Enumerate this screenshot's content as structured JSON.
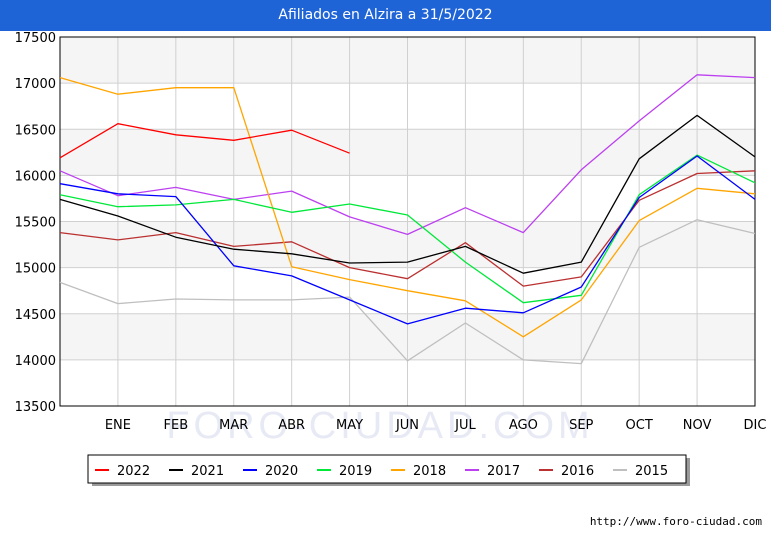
{
  "title": "Afiliados en Alzira a 31/5/2022",
  "source_url": "http://www.foro-ciudad.com",
  "watermark": "FORO-CIUDAD.COM",
  "colors": {
    "title_bg": "#1f64d7",
    "band": "#f5f5f5",
    "grid": "#d0d0d0"
  },
  "chart_data": {
    "type": "line",
    "title": "Afiliados en Alzira a 31/5/2022",
    "xlabel": "",
    "ylabel": "",
    "x_points": [
      "",
      "ENE",
      "FEB",
      "MAR",
      "ABR",
      "MAY",
      "JUN",
      "JUL",
      "AGO",
      "SEP",
      "OCT",
      "NOV",
      "DIC"
    ],
    "x_tick_labels": [
      "ENE",
      "FEB",
      "MAR",
      "ABR",
      "MAY",
      "JUN",
      "JUL",
      "AGO",
      "SEP",
      "OCT",
      "NOV",
      "DIC"
    ],
    "ylim": [
      13500,
      17500
    ],
    "y_ticks": [
      13500,
      14000,
      14500,
      15000,
      15500,
      16000,
      16500,
      17000,
      17500
    ],
    "grid": true,
    "legend_position": "bottom",
    "series": [
      {
        "name": "2022",
        "color": "#ff0000",
        "values": [
          16190,
          16560,
          16440,
          16380,
          16490,
          16240
        ]
      },
      {
        "name": "2021",
        "color": "#000000",
        "values": [
          15740,
          15560,
          15330,
          15200,
          15150,
          15050,
          15060,
          15230,
          14940,
          15060,
          16180,
          16650,
          16200
        ]
      },
      {
        "name": "2020",
        "color": "#0000ff",
        "values": [
          15910,
          15800,
          15770,
          15020,
          14910,
          14650,
          14390,
          14560,
          14510,
          14790,
          15760,
          16210,
          15740
        ]
      },
      {
        "name": "2019",
        "color": "#00e83a",
        "values": [
          15790,
          15660,
          15680,
          15740,
          15600,
          15690,
          15570,
          15060,
          14620,
          14700,
          15790,
          16220,
          15920
        ]
      },
      {
        "name": "2018",
        "color": "#ffa500",
        "values": [
          17060,
          16880,
          16950,
          16950,
          15010,
          14870,
          14750,
          14640,
          14250,
          14650,
          15510,
          15860,
          15800
        ]
      },
      {
        "name": "2017",
        "color": "#bc40f0",
        "values": [
          16050,
          15780,
          15870,
          15740,
          15830,
          15550,
          15360,
          15650,
          15380,
          16060,
          16590,
          17090,
          17060
        ]
      },
      {
        "name": "2016",
        "color": "#bb3030",
        "values": [
          15380,
          15300,
          15380,
          15230,
          15280,
          15000,
          14880,
          15270,
          14800,
          14900,
          15730,
          16020,
          16050
        ]
      },
      {
        "name": "2015",
        "color": "#bfbfbf",
        "values": [
          14840,
          14610,
          14660,
          14650,
          14650,
          14680,
          13990,
          14400,
          14000,
          13960,
          15220,
          15520,
          15370
        ]
      }
    ]
  }
}
